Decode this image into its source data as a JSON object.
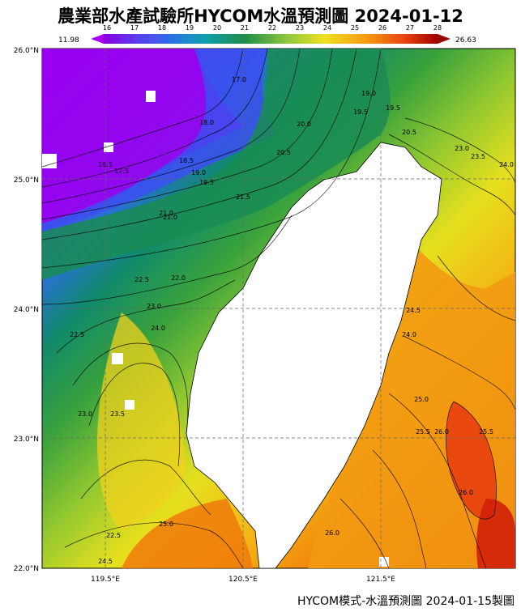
{
  "title": "農業部水產試驗所HYCOM水溫預測圖 2024-01-12",
  "footer": "HYCOM模式-水溫預測圖 2024-01-15製圖",
  "colorbar": {
    "min_label": "11.98",
    "max_label": "26.63",
    "ticks": [
      "16",
      "17",
      "18",
      "19",
      "20",
      "21",
      "22",
      "23",
      "24",
      "25",
      "26",
      "27",
      "28"
    ]
  },
  "axes": {
    "lat_labels": [
      "26.0°N",
      "25.0°N",
      "24.0°N",
      "23.0°N",
      "22.0°N"
    ],
    "lon_labels": [
      "119.5°E",
      "120.5°E",
      "121.5°E"
    ]
  },
  "contour_labels": [
    "17.0",
    "18.0",
    "16.5",
    "17.5",
    "18.5",
    "19.0",
    "19.5",
    "20.5",
    "20.0",
    "19.0",
    "19.5",
    "19.5",
    "20.5",
    "21.0",
    "23.0",
    "23.5",
    "24.0",
    "21.5",
    "21.0",
    "22.0",
    "22.5",
    "22.5",
    "23.0",
    "24.0",
    "23.5",
    "23.0",
    "22.5",
    "24.5",
    "25.0",
    "25.5",
    "26.0",
    "25.5",
    "26.0",
    "24.0",
    "24.5",
    "25.0",
    "26.0"
  ],
  "colors": {
    "cold": "#9b00f0",
    "water": "#1f8a4c",
    "warm": "#f08a0a",
    "hot": "#e8220a",
    "land": "#ffffff"
  }
}
